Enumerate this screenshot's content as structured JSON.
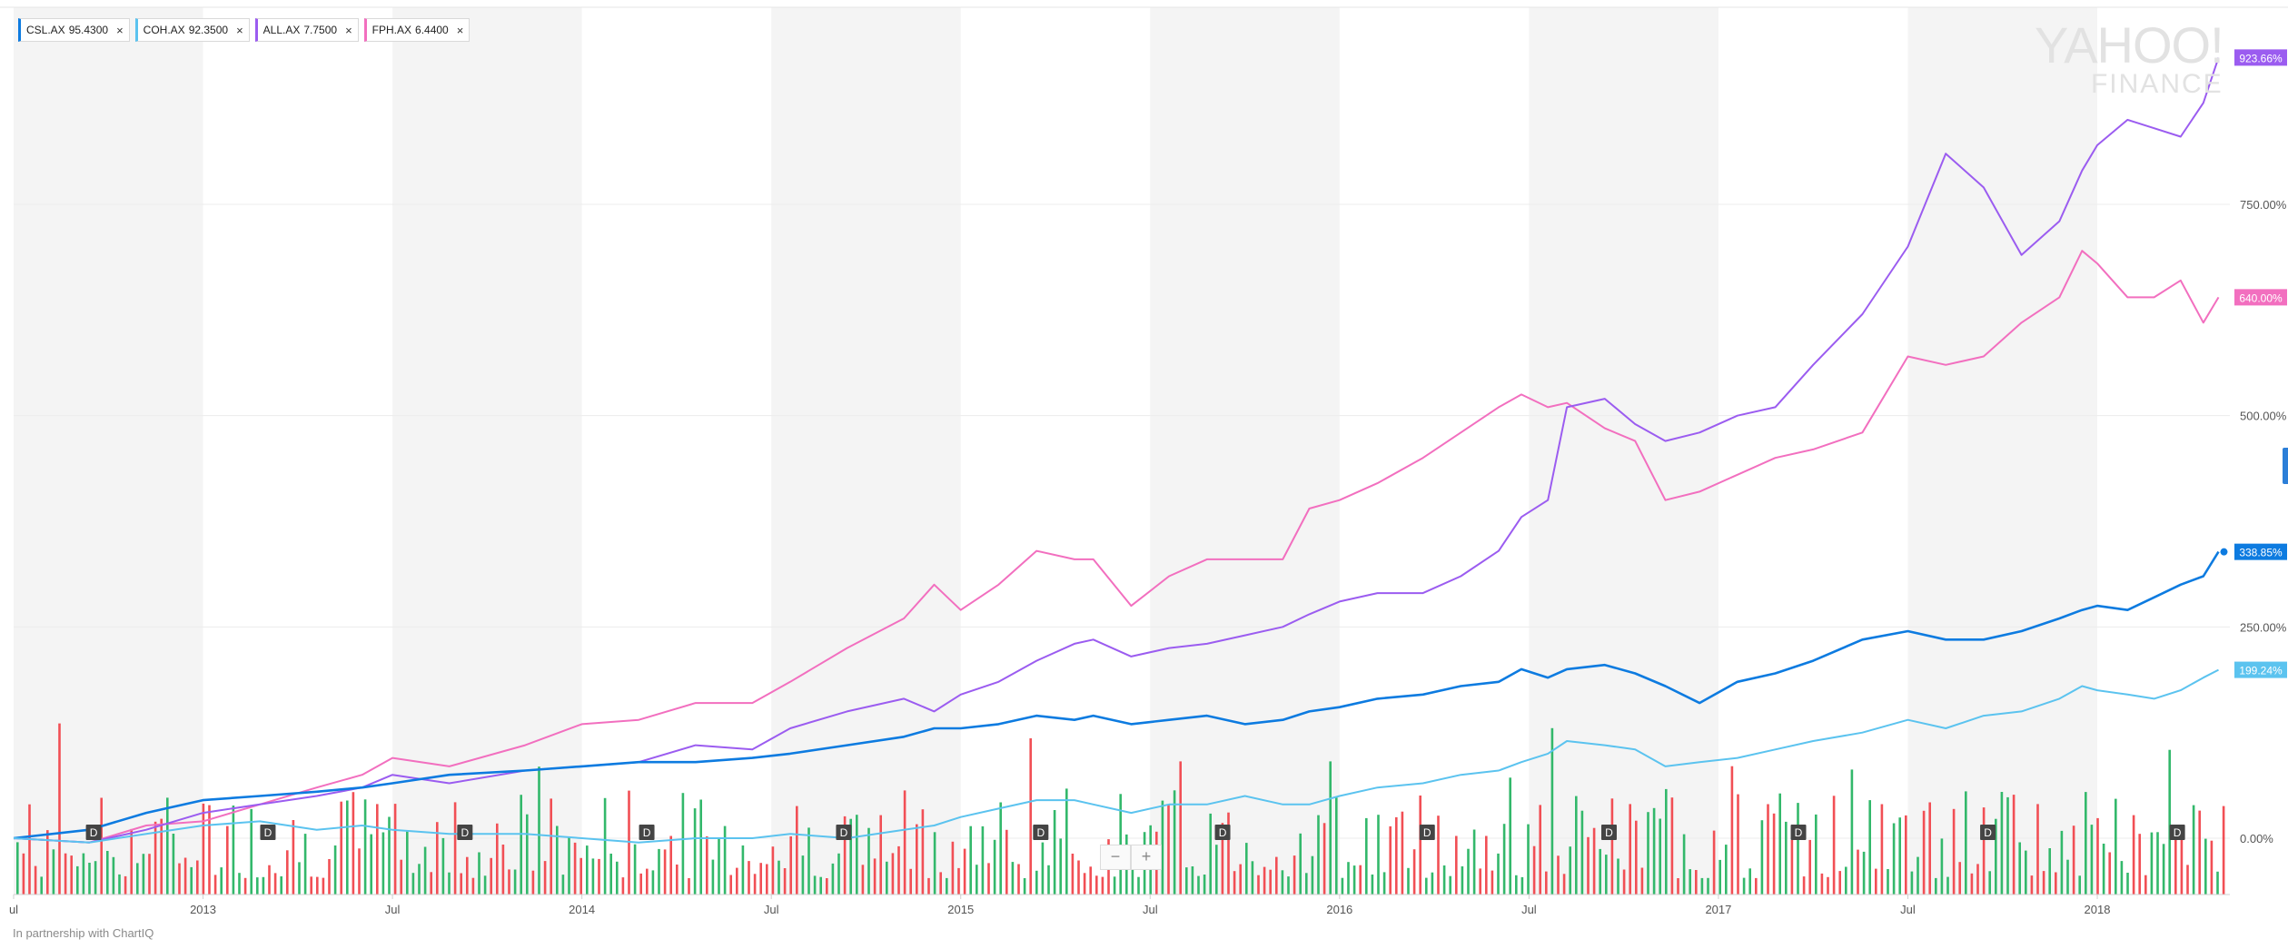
{
  "legend": [
    {
      "symbol": "CSL.AX",
      "price": "95.4300",
      "color": "#0d7be0"
    },
    {
      "symbol": "COH.AX",
      "price": "92.3500",
      "color": "#5bc3ef"
    },
    {
      "symbol": "ALL.AX",
      "price": "7.7500",
      "color": "#9b5cf0"
    },
    {
      "symbol": "FPH.AX",
      "price": "6.4400",
      "color": "#f26fbf"
    }
  ],
  "close_glyph": "×",
  "watermark": {
    "line1": "YAHOO!",
    "line2": "FINANCE"
  },
  "footer": "In partnership with ChartIQ",
  "zoom": {
    "minus": "−",
    "plus": "+"
  },
  "chart_data": {
    "type": "line",
    "y_axis": {
      "range": [
        0,
        1050
      ],
      "ticks": [
        0,
        250,
        500,
        750
      ],
      "tick_labels": [
        "0.00%",
        "250.00%",
        "500.00%",
        "750.00%"
      ],
      "unit": "%"
    },
    "x_axis": {
      "labels": [
        {
          "label": "ul",
          "t": 2012.5
        },
        {
          "label": "2013",
          "t": 2013.0
        },
        {
          "label": "Jul",
          "t": 2013.5
        },
        {
          "label": "2014",
          "t": 2014.0
        },
        {
          "label": "Jul",
          "t": 2014.5
        },
        {
          "label": "2015",
          "t": 2015.0
        },
        {
          "label": "Jul",
          "t": 2015.5
        },
        {
          "label": "2016",
          "t": 2016.0
        },
        {
          "label": "Jul",
          "t": 2016.5
        },
        {
          "label": "2017",
          "t": 2017.0
        },
        {
          "label": "Jul",
          "t": 2017.5
        },
        {
          "label": "2018",
          "t": 2018.0
        }
      ],
      "range": [
        2012.5,
        2018.35
      ]
    },
    "dividend_markers": [
      2012.71,
      2013.17,
      2013.69,
      2014.17,
      2014.69,
      2015.21,
      2015.69,
      2016.23,
      2016.71,
      2017.21,
      2017.71,
      2018.21
    ],
    "dividend_label": "D",
    "series": [
      {
        "name": "FPH.AX",
        "color": "#f26fbf",
        "end_label": "640.00%",
        "points": [
          [
            2012.5,
            0
          ],
          [
            2012.7,
            -5
          ],
          [
            2012.85,
            15
          ],
          [
            2013.0,
            20
          ],
          [
            2013.15,
            40
          ],
          [
            2013.3,
            60
          ],
          [
            2013.42,
            75
          ],
          [
            2013.5,
            95
          ],
          [
            2013.65,
            85
          ],
          [
            2013.85,
            110
          ],
          [
            2014.0,
            135
          ],
          [
            2014.15,
            140
          ],
          [
            2014.3,
            160
          ],
          [
            2014.45,
            160
          ],
          [
            2014.55,
            185
          ],
          [
            2014.7,
            225
          ],
          [
            2014.85,
            260
          ],
          [
            2014.93,
            300
          ],
          [
            2015.0,
            270
          ],
          [
            2015.1,
            300
          ],
          [
            2015.2,
            340
          ],
          [
            2015.3,
            330
          ],
          [
            2015.35,
            330
          ],
          [
            2015.45,
            275
          ],
          [
            2015.55,
            310
          ],
          [
            2015.65,
            330
          ],
          [
            2015.75,
            330
          ],
          [
            2015.85,
            330
          ],
          [
            2015.92,
            390
          ],
          [
            2016.0,
            400
          ],
          [
            2016.1,
            420
          ],
          [
            2016.22,
            450
          ],
          [
            2016.32,
            480
          ],
          [
            2016.42,
            510
          ],
          [
            2016.48,
            525
          ],
          [
            2016.55,
            510
          ],
          [
            2016.6,
            515
          ],
          [
            2016.7,
            485
          ],
          [
            2016.78,
            470
          ],
          [
            2016.86,
            400
          ],
          [
            2016.95,
            410
          ],
          [
            2017.05,
            430
          ],
          [
            2017.15,
            450
          ],
          [
            2017.25,
            460
          ],
          [
            2017.38,
            480
          ],
          [
            2017.5,
            570
          ],
          [
            2017.6,
            560
          ],
          [
            2017.7,
            570
          ],
          [
            2017.8,
            610
          ],
          [
            2017.9,
            640
          ],
          [
            2017.96,
            695
          ],
          [
            2018.0,
            680
          ],
          [
            2018.08,
            640
          ],
          [
            2018.15,
            640
          ],
          [
            2018.22,
            660
          ],
          [
            2018.28,
            610
          ],
          [
            2018.32,
            640
          ]
        ]
      },
      {
        "name": "ALL.AX",
        "color": "#9b5cf0",
        "end_label": "923.66%",
        "points": [
          [
            2012.5,
            0
          ],
          [
            2012.7,
            -5
          ],
          [
            2012.85,
            10
          ],
          [
            2013.0,
            30
          ],
          [
            2013.15,
            40
          ],
          [
            2013.3,
            50
          ],
          [
            2013.42,
            60
          ],
          [
            2013.5,
            75
          ],
          [
            2013.65,
            65
          ],
          [
            2013.85,
            80
          ],
          [
            2014.0,
            85
          ],
          [
            2014.15,
            90
          ],
          [
            2014.3,
            110
          ],
          [
            2014.45,
            105
          ],
          [
            2014.55,
            130
          ],
          [
            2014.7,
            150
          ],
          [
            2014.85,
            165
          ],
          [
            2014.93,
            150
          ],
          [
            2015.0,
            170
          ],
          [
            2015.1,
            185
          ],
          [
            2015.2,
            210
          ],
          [
            2015.3,
            230
          ],
          [
            2015.35,
            235
          ],
          [
            2015.45,
            215
          ],
          [
            2015.55,
            225
          ],
          [
            2015.65,
            230
          ],
          [
            2015.75,
            240
          ],
          [
            2015.85,
            250
          ],
          [
            2015.92,
            265
          ],
          [
            2016.0,
            280
          ],
          [
            2016.1,
            290
          ],
          [
            2016.22,
            290
          ],
          [
            2016.32,
            310
          ],
          [
            2016.42,
            340
          ],
          [
            2016.48,
            380
          ],
          [
            2016.55,
            400
          ],
          [
            2016.6,
            510
          ],
          [
            2016.7,
            520
          ],
          [
            2016.78,
            490
          ],
          [
            2016.86,
            470
          ],
          [
            2016.95,
            480
          ],
          [
            2017.05,
            500
          ],
          [
            2017.15,
            510
          ],
          [
            2017.25,
            560
          ],
          [
            2017.38,
            620
          ],
          [
            2017.5,
            700
          ],
          [
            2017.6,
            810
          ],
          [
            2017.7,
            770
          ],
          [
            2017.8,
            690
          ],
          [
            2017.9,
            730
          ],
          [
            2017.96,
            790
          ],
          [
            2018.0,
            820
          ],
          [
            2018.08,
            850
          ],
          [
            2018.15,
            840
          ],
          [
            2018.22,
            830
          ],
          [
            2018.28,
            870
          ],
          [
            2018.32,
            923.66
          ]
        ]
      },
      {
        "name": "CSL.AX",
        "color": "#0d7be0",
        "end_label": "338.85%",
        "points": [
          [
            2012.5,
            0
          ],
          [
            2012.7,
            10
          ],
          [
            2012.85,
            30
          ],
          [
            2013.0,
            45
          ],
          [
            2013.15,
            50
          ],
          [
            2013.3,
            55
          ],
          [
            2013.42,
            60
          ],
          [
            2013.5,
            65
          ],
          [
            2013.65,
            75
          ],
          [
            2013.85,
            80
          ],
          [
            2014.0,
            85
          ],
          [
            2014.15,
            90
          ],
          [
            2014.3,
            90
          ],
          [
            2014.45,
            95
          ],
          [
            2014.55,
            100
          ],
          [
            2014.7,
            110
          ],
          [
            2014.85,
            120
          ],
          [
            2014.93,
            130
          ],
          [
            2015.0,
            130
          ],
          [
            2015.1,
            135
          ],
          [
            2015.2,
            145
          ],
          [
            2015.3,
            140
          ],
          [
            2015.35,
            145
          ],
          [
            2015.45,
            135
          ],
          [
            2015.55,
            140
          ],
          [
            2015.65,
            145
          ],
          [
            2015.75,
            135
          ],
          [
            2015.85,
            140
          ],
          [
            2015.92,
            150
          ],
          [
            2016.0,
            155
          ],
          [
            2016.1,
            165
          ],
          [
            2016.22,
            170
          ],
          [
            2016.32,
            180
          ],
          [
            2016.42,
            185
          ],
          [
            2016.48,
            200
          ],
          [
            2016.55,
            190
          ],
          [
            2016.6,
            200
          ],
          [
            2016.7,
            205
          ],
          [
            2016.78,
            195
          ],
          [
            2016.86,
            180
          ],
          [
            2016.95,
            160
          ],
          [
            2017.05,
            185
          ],
          [
            2017.15,
            195
          ],
          [
            2017.25,
            210
          ],
          [
            2017.38,
            235
          ],
          [
            2017.5,
            245
          ],
          [
            2017.6,
            235
          ],
          [
            2017.7,
            235
          ],
          [
            2017.8,
            245
          ],
          [
            2017.9,
            260
          ],
          [
            2017.96,
            270
          ],
          [
            2018.0,
            275
          ],
          [
            2018.08,
            270
          ],
          [
            2018.15,
            285
          ],
          [
            2018.22,
            300
          ],
          [
            2018.28,
            310
          ],
          [
            2018.32,
            338.85
          ]
        ]
      },
      {
        "name": "COH.AX",
        "color": "#5bc3ef",
        "end_label": "199.24%",
        "points": [
          [
            2012.5,
            0
          ],
          [
            2012.7,
            -5
          ],
          [
            2012.85,
            5
          ],
          [
            2013.0,
            15
          ],
          [
            2013.15,
            20
          ],
          [
            2013.3,
            10
          ],
          [
            2013.42,
            15
          ],
          [
            2013.5,
            10
          ],
          [
            2013.65,
            5
          ],
          [
            2013.85,
            5
          ],
          [
            2014.0,
            0
          ],
          [
            2014.15,
            -5
          ],
          [
            2014.3,
            0
          ],
          [
            2014.45,
            0
          ],
          [
            2014.55,
            5
          ],
          [
            2014.7,
            0
          ],
          [
            2014.85,
            10
          ],
          [
            2014.93,
            15
          ],
          [
            2015.0,
            25
          ],
          [
            2015.1,
            35
          ],
          [
            2015.2,
            45
          ],
          [
            2015.3,
            45
          ],
          [
            2015.35,
            40
          ],
          [
            2015.45,
            30
          ],
          [
            2015.55,
            40
          ],
          [
            2015.65,
            40
          ],
          [
            2015.75,
            50
          ],
          [
            2015.85,
            40
          ],
          [
            2015.92,
            40
          ],
          [
            2016.0,
            50
          ],
          [
            2016.1,
            60
          ],
          [
            2016.22,
            65
          ],
          [
            2016.32,
            75
          ],
          [
            2016.42,
            80
          ],
          [
            2016.48,
            90
          ],
          [
            2016.55,
            100
          ],
          [
            2016.6,
            115
          ],
          [
            2016.7,
            110
          ],
          [
            2016.78,
            105
          ],
          [
            2016.86,
            85
          ],
          [
            2016.95,
            90
          ],
          [
            2017.05,
            95
          ],
          [
            2017.15,
            105
          ],
          [
            2017.25,
            115
          ],
          [
            2017.38,
            125
          ],
          [
            2017.5,
            140
          ],
          [
            2017.6,
            130
          ],
          [
            2017.7,
            145
          ],
          [
            2017.8,
            150
          ],
          [
            2017.9,
            165
          ],
          [
            2017.96,
            180
          ],
          [
            2018.0,
            175
          ],
          [
            2018.08,
            170
          ],
          [
            2018.15,
            165
          ],
          [
            2018.22,
            175
          ],
          [
            2018.28,
            190
          ],
          [
            2018.32,
            199.24
          ]
        ]
      }
    ]
  }
}
